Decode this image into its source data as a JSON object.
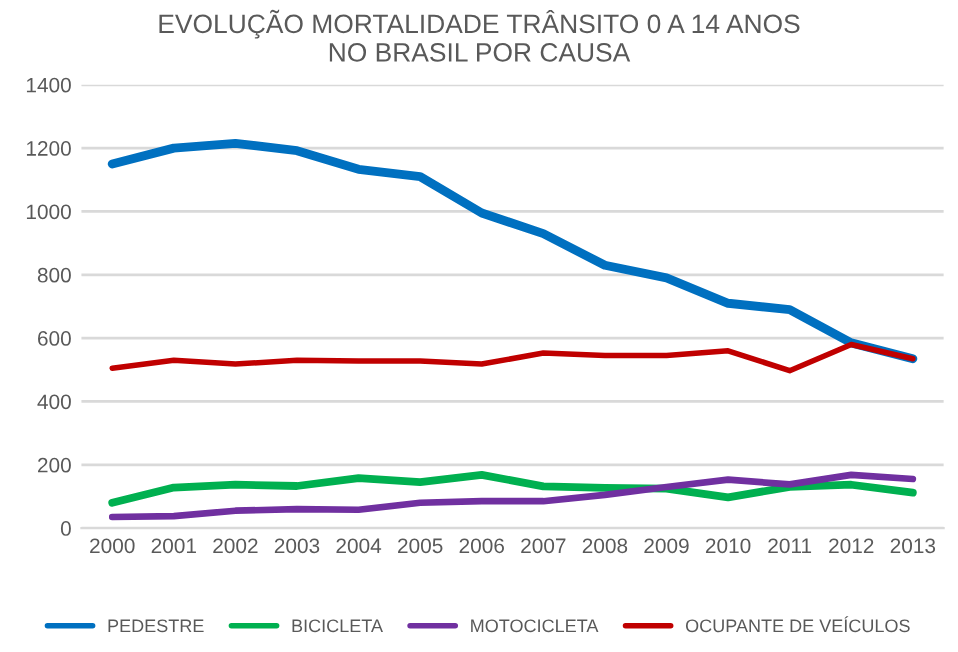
{
  "chart_data": {
    "type": "line",
    "title": "EVOLUÇÃO MORTALIDADE TRÂNSITO 0 A 14 ANOS\nNO BRASIL POR CAUSA",
    "categories": [
      "2000",
      "2001",
      "2002",
      "2003",
      "2004",
      "2005",
      "2006",
      "2007",
      "2008",
      "2009",
      "2010",
      "2011",
      "2012",
      "2013"
    ],
    "series": [
      {
        "name": "PEDESTRE",
        "color": "#0070c0",
        "values": [
          1150,
          1200,
          1215,
          1192,
          1133,
          1110,
          995,
          930,
          830,
          790,
          710,
          690,
          585,
          535
        ]
      },
      {
        "name": "BICICLETA",
        "color": "#00b050",
        "values": [
          80,
          128,
          137,
          133,
          158,
          145,
          168,
          132,
          127,
          125,
          97,
          130,
          137,
          112
        ]
      },
      {
        "name": "MOTOCICLETA",
        "color": "#7030a0",
        "values": [
          35,
          38,
          55,
          60,
          58,
          80,
          85,
          85,
          105,
          130,
          153,
          138,
          168,
          155
        ]
      },
      {
        "name": "OCUPANTE DE VEÍCULOS",
        "color": "#c00000",
        "values": [
          505,
          530,
          518,
          530,
          528,
          528,
          518,
          553,
          545,
          545,
          560,
          497,
          580,
          535
        ]
      }
    ],
    "ylim": [
      0,
      1400
    ],
    "yticks": [
      0,
      200,
      400,
      600,
      800,
      1000,
      1200,
      1400
    ],
    "grid": "y",
    "legend": "bottom",
    "marker": "none",
    "line_style": "solid"
  }
}
